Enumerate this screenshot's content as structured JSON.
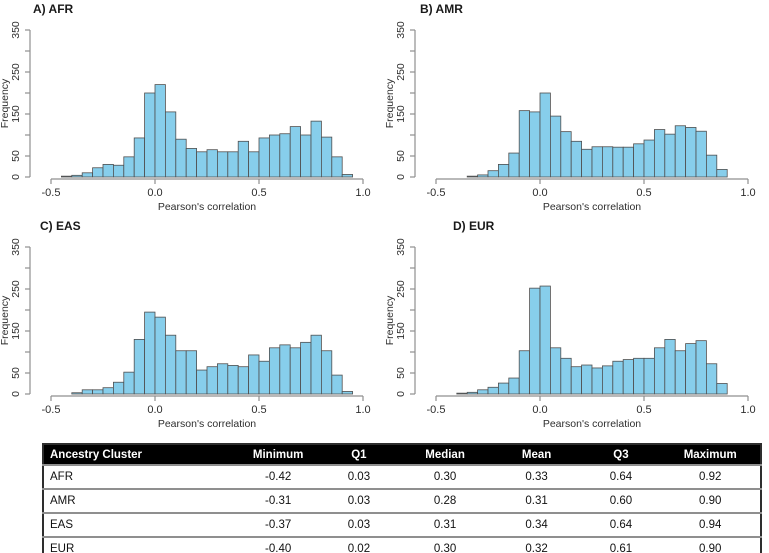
{
  "colors": {
    "bar_fill": "#87CEEB",
    "bar_border": "#4f4f4f",
    "axis_line": "#8f8f8f",
    "text": "#2e2e2e",
    "table_header_bg": "#000000",
    "table_header_text": "#ffffff"
  },
  "chart_data": [
    {
      "type": "bar",
      "subtype": "histogram",
      "title": "A) AFR",
      "xlabel": "Pearson's correlation",
      "ylabel": "Frequency",
      "xlim": [
        -0.5,
        1.0
      ],
      "ylim": [
        0,
        350
      ],
      "xticks": [
        -0.5,
        0,
        0.5,
        1
      ],
      "xtick_labels": [
        "-0.5",
        "0.0",
        "0.5",
        "1.0"
      ],
      "yticks": [
        0,
        50,
        100,
        150,
        200,
        250,
        300,
        350
      ],
      "ytick_labels": [
        "0",
        "50",
        "",
        "150",
        "",
        "250",
        "",
        "350"
      ],
      "bin_start": -0.45,
      "bin_width": 0.05,
      "counts": [
        2,
        4,
        10,
        22,
        30,
        28,
        48,
        93,
        200,
        220,
        155,
        90,
        68,
        60,
        65,
        60,
        60,
        85,
        60,
        93,
        100,
        103,
        120,
        100,
        133,
        95,
        48,
        6
      ]
    },
    {
      "type": "bar",
      "subtype": "histogram",
      "title": "B) AMR",
      "xlabel": "Pearson's correlation",
      "ylabel": "Frequency",
      "xlim": [
        -0.5,
        1.0
      ],
      "ylim": [
        0,
        350
      ],
      "xticks": [
        -0.5,
        0,
        0.5,
        1
      ],
      "xtick_labels": [
        "-0.5",
        "0.0",
        "0.5",
        "1.0"
      ],
      "yticks": [
        0,
        50,
        100,
        150,
        200,
        250,
        300,
        350
      ],
      "ytick_labels": [
        "0",
        "50",
        "",
        "150",
        "",
        "250",
        "",
        "350"
      ],
      "bin_start": -0.35,
      "bin_width": 0.05,
      "counts": [
        2,
        5,
        15,
        30,
        57,
        158,
        155,
        200,
        145,
        108,
        85,
        66,
        72,
        72,
        71,
        71,
        79,
        88,
        113,
        102,
        122,
        118,
        109,
        52,
        18
      ]
    },
    {
      "type": "bar",
      "subtype": "histogram",
      "title": "C) EAS",
      "xlabel": "Pearson's correlation",
      "ylabel": "Frequency",
      "xlim": [
        -0.5,
        1.0
      ],
      "ylim": [
        0,
        350
      ],
      "xticks": [
        -0.5,
        0,
        0.5,
        1
      ],
      "xtick_labels": [
        "-0.5",
        "0.0",
        "0.5",
        "1.0"
      ],
      "yticks": [
        0,
        50,
        100,
        150,
        200,
        250,
        300,
        350
      ],
      "ytick_labels": [
        "0",
        "50",
        "",
        "150",
        "",
        "250",
        "",
        "350"
      ],
      "bin_start": -0.4,
      "bin_width": 0.05,
      "counts": [
        3,
        10,
        10,
        15,
        28,
        52,
        130,
        195,
        183,
        140,
        103,
        103,
        57,
        65,
        72,
        68,
        65,
        93,
        78,
        110,
        117,
        110,
        123,
        140,
        103,
        45,
        6
      ]
    },
    {
      "type": "bar",
      "subtype": "histogram",
      "title": "D) EUR",
      "xlabel": "Pearson's correlation",
      "ylabel": "Frequency",
      "xlim": [
        -0.5,
        1.0
      ],
      "ylim": [
        0,
        350
      ],
      "xticks": [
        -0.5,
        0,
        0.5,
        1
      ],
      "xtick_labels": [
        "-0.5",
        "0.0",
        "0.5",
        "1.0"
      ],
      "yticks": [
        0,
        50,
        100,
        150,
        200,
        250,
        300,
        350
      ],
      "ytick_labels": [
        "0",
        "50",
        "",
        "150",
        "",
        "250",
        "",
        "350"
      ],
      "bin_start": -0.4,
      "bin_width": 0.05,
      "counts": [
        2,
        4,
        10,
        16,
        26,
        38,
        103,
        252,
        257,
        110,
        85,
        65,
        69,
        62,
        67,
        78,
        82,
        85,
        85,
        110,
        130,
        103,
        120,
        127,
        72,
        25
      ]
    }
  ],
  "table": {
    "columns": [
      "Ancestry Cluster",
      "Minimum",
      "Q1",
      "Median",
      "Mean",
      "Q3",
      "Maximum"
    ],
    "rows": [
      [
        "AFR",
        "-0.42",
        "0.03",
        "0.30",
        "0.33",
        "0.64",
        "0.92"
      ],
      [
        "AMR",
        "-0.31",
        "0.03",
        "0.28",
        "0.31",
        "0.60",
        "0.90"
      ],
      [
        "EAS",
        "-0.37",
        "0.03",
        "0.31",
        "0.34",
        "0.64",
        "0.94"
      ],
      [
        "EUR",
        "-0.40",
        "0.02",
        "0.30",
        "0.32",
        "0.61",
        "0.90"
      ]
    ]
  }
}
